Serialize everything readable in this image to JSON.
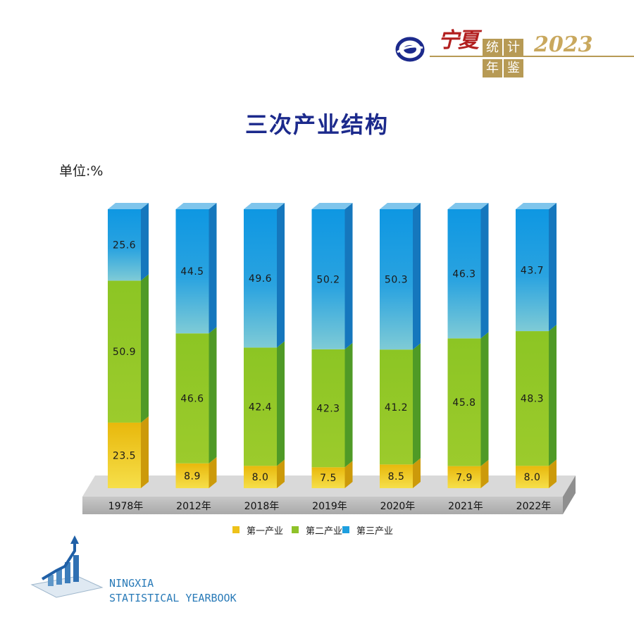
{
  "header": {
    "brand_cn": "宁夏",
    "tiles": [
      "统",
      "计",
      "年",
      "鉴"
    ],
    "year": "2023"
  },
  "colors": {
    "primary": "#eec21a",
    "secondary": "#8fc22a",
    "tertiary": "#1e9fdf",
    "base": "#bdbdbd",
    "title": "#1c2a8c"
  },
  "chart_data": {
    "type": "bar",
    "stacked": true,
    "title": "三次产业结构",
    "unit": "单位:%",
    "categories": [
      "1978年",
      "2012年",
      "2018年",
      "2019年",
      "2020年",
      "2021年",
      "2022年"
    ],
    "series": [
      {
        "name": "第一产业",
        "values": [
          23.5,
          8.9,
          8.0,
          7.5,
          8.5,
          7.9,
          8.0
        ]
      },
      {
        "name": "第二产业",
        "values": [
          50.9,
          46.6,
          42.4,
          42.3,
          41.2,
          45.8,
          48.3
        ]
      },
      {
        "name": "第三产业",
        "values": [
          25.6,
          44.5,
          49.6,
          50.2,
          50.3,
          46.3,
          43.7
        ]
      }
    ],
    "value_labels": [
      [
        "23.5",
        "8.9",
        "8.0",
        "7.5",
        "8.5",
        "7.9",
        "8.0"
      ],
      [
        "50.9",
        "46.6",
        "42.4",
        "42.3",
        "41.2",
        "45.8",
        "48.3"
      ],
      [
        "25.6",
        "44.5",
        "49.6",
        "50.2",
        "50.3",
        "46.3",
        "43.7"
      ]
    ],
    "ylim": [
      0,
      100
    ],
    "legend_position": "bottom"
  },
  "footer": {
    "line1": "NINGXIA",
    "line2": "STATISTICAL YEARBOOK"
  }
}
